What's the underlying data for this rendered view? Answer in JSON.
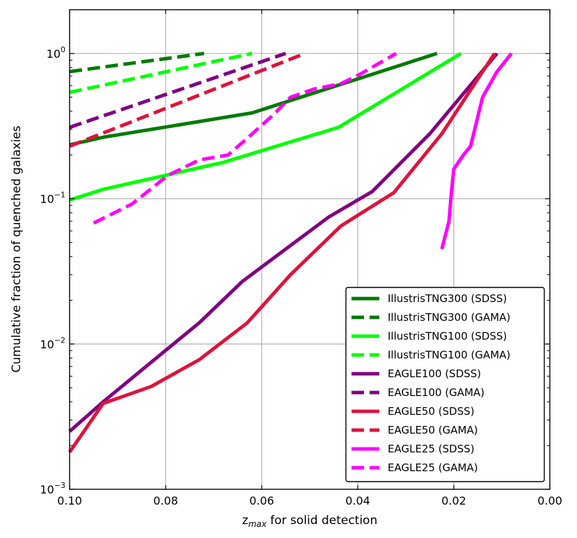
{
  "chart_data": {
    "type": "line",
    "xlabel": "z",
    "xlabel_sub": "max",
    "xlabel_rest": " for solid detection",
    "ylabel": "Cumulative fraction of quenched galaxies",
    "xlim": [
      0.1,
      0.0
    ],
    "ylim": [
      0.001,
      2.0
    ],
    "yscale": "log",
    "grid": true,
    "legend_position": "bottom-right",
    "x_ticks": [
      0.1,
      0.08,
      0.06,
      0.04,
      0.02,
      0.0
    ],
    "x_tick_labels": [
      "0.10",
      "0.08",
      "0.06",
      "0.04",
      "0.02",
      "0.00"
    ],
    "y_ticks": [
      {
        "value": 1,
        "base": "10",
        "exp": "0"
      },
      {
        "value": 0.1,
        "base": "10",
        "exp": "−1"
      },
      {
        "value": 0.01,
        "base": "10",
        "exp": "−2"
      },
      {
        "value": 0.001,
        "base": "10",
        "exp": "−3"
      }
    ],
    "series": [
      {
        "name": "IllustrisTNG300 (SDSS)",
        "color": "#007a00",
        "dash": "solid",
        "x": [
          0.1,
          0.093,
          0.062,
          0.0235
        ],
        "y": [
          0.235,
          0.265,
          0.39,
          1.0
        ]
      },
      {
        "name": "IllustrisTNG300 (GAMA)",
        "color": "#007a00",
        "dash": "dashed",
        "x": [
          0.1,
          0.072
        ],
        "y": [
          0.75,
          1.0
        ]
      },
      {
        "name": "IllustrisTNG100 (SDSS)",
        "color": "#00ff00",
        "dash": "solid",
        "x": [
          0.1,
          0.093,
          0.068,
          0.044,
          0.0185
        ],
        "y": [
          0.098,
          0.116,
          0.178,
          0.31,
          1.0
        ]
      },
      {
        "name": "IllustrisTNG100 (GAMA)",
        "color": "#00ff00",
        "dash": "dashed",
        "x": [
          0.1,
          0.062
        ],
        "y": [
          0.54,
          1.0
        ]
      },
      {
        "name": "EAGLE100 (SDSS)",
        "color": "#800080",
        "dash": "solid",
        "x": [
          0.1,
          0.093,
          0.083,
          0.073,
          0.064,
          0.055,
          0.046,
          0.037,
          0.025,
          0.011
        ],
        "y": [
          0.0025,
          0.004,
          0.0075,
          0.014,
          0.027,
          0.045,
          0.075,
          0.112,
          0.28,
          1.0
        ]
      },
      {
        "name": "EAGLE100 (GAMA)",
        "color": "#800080",
        "dash": "dashed",
        "x": [
          0.1,
          0.055
        ],
        "y": [
          0.31,
          1.0
        ]
      },
      {
        "name": "EAGLE50 (SDSS)",
        "color": "#dc143c",
        "dash": "solid",
        "x": [
          0.1,
          0.093,
          0.083,
          0.073,
          0.063,
          0.054,
          0.0435,
          0.0325,
          0.0225,
          0.0115
        ],
        "y": [
          0.0018,
          0.0039,
          0.0051,
          0.0078,
          0.014,
          0.03,
          0.065,
          0.11,
          0.28,
          1.0
        ]
      },
      {
        "name": "EAGLE50 (GAMA)",
        "color": "#dc143c",
        "dash": "dashed",
        "x": [
          0.1,
          0.051
        ],
        "y": [
          0.23,
          1.0
        ]
      },
      {
        "name": "EAGLE25 (SDSS)",
        "color": "#ff00ff",
        "dash": "solid",
        "x": [
          0.0225,
          0.021,
          0.0205,
          0.02,
          0.018,
          0.0165,
          0.014,
          0.011,
          0.008
        ],
        "y": [
          0.045,
          0.07,
          0.11,
          0.16,
          0.2,
          0.23,
          0.5,
          0.75,
          1.0
        ]
      },
      {
        "name": "EAGLE25 (GAMA)",
        "color": "#ff00ff",
        "dash": "dashed",
        "x": [
          0.095,
          0.087,
          0.0795,
          0.073,
          0.067,
          0.0625,
          0.0575,
          0.054,
          0.049,
          0.0435,
          0.0395,
          0.032
        ],
        "y": [
          0.068,
          0.092,
          0.145,
          0.185,
          0.2,
          0.27,
          0.38,
          0.5,
          0.57,
          0.62,
          0.72,
          1.0
        ]
      }
    ]
  }
}
